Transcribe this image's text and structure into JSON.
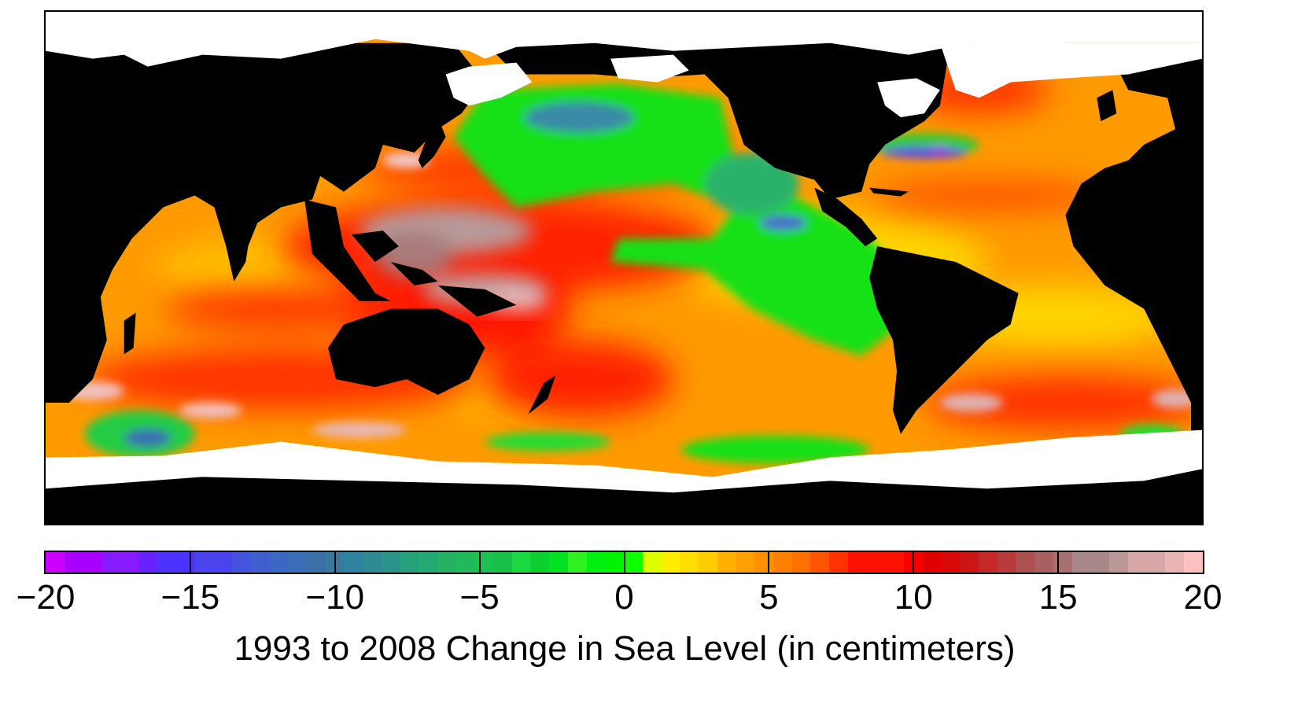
{
  "chart_data": {
    "type": "heatmap",
    "title": "",
    "colorbar_label": "1993 to 2008 Change in Sea Level (in centimeters)",
    "colorbar_range": [
      -20,
      20
    ],
    "colorbar_ticks": [
      -20,
      -15,
      -10,
      -5,
      0,
      5,
      10,
      15,
      20
    ],
    "colorbar_tick_labels": [
      "−20",
      "−15",
      "−10",
      "−5",
      "0",
      "5",
      "10",
      "15",
      "20"
    ],
    "colorbar_step_cm": 1,
    "colorbar_colors": [
      "#cc00ff",
      "#aa00ff",
      "#aa00ff",
      "#881aff",
      "#881aff",
      "#6622ff",
      "#4d33ff",
      "#4d33ff",
      "#4a44ee",
      "#4a44ee",
      "#4455dd",
      "#4060d0",
      "#3a68c4",
      "#3a6cb8",
      "#3e70a8",
      "#377a9e",
      "#2e84a0",
      "#2e8a94",
      "#2a9488",
      "#27a07c",
      "#24a874",
      "#26b064",
      "#22b85c",
      "#1ec050",
      "#18c046",
      "#1ad840",
      "#0cd030",
      "#04e024",
      "#30f020",
      "#00f010",
      "#00f400",
      "#10ff00",
      "#ddff00",
      "#ffee00",
      "#ffdd00",
      "#ffcc00",
      "#ffb000",
      "#ffa000",
      "#ff9000",
      "#ff8000",
      "#ff7000",
      "#ff5500",
      "#ff3300",
      "#ff1100",
      "#ff1100",
      "#ff1100",
      "#f80000",
      "#e00000",
      "#d80808",
      "#cc1515",
      "#c42828",
      "#b83a3a",
      "#ac5050",
      "#a86060",
      "#a87070",
      "#a88888",
      "#a88888",
      "#bb9898",
      "#d8a8a8",
      "#d8a8a8",
      "#e8b4b4",
      "#ffc0c0"
    ],
    "projection": "equirectangular, Pacific-centered (approx. 20°E to 20°E)",
    "legend": {
      "land": "black",
      "sea_ice_or_no_data": "white"
    },
    "regions_summary": [
      {
        "region": "Western tropical Pacific",
        "approx_change_cm": "15 to 20"
      },
      {
        "region": "Eastern North Pacific / off Americas",
        "approx_change_cm": "-5 to 0"
      },
      {
        "region": "North Atlantic Gulf Stream",
        "approx_change_cm": "-20 to -5 (mixed with +15)"
      },
      {
        "region": "Indian Ocean",
        "approx_change_cm": "5 to 10"
      },
      {
        "region": "South Atlantic",
        "approx_change_cm": "5 to 10"
      },
      {
        "region": "Southern Ocean",
        "approx_change_cm": "-10 to 20 (patchy)"
      },
      {
        "region": "Subpolar North Atlantic",
        "approx_change_cm": "10 to 15"
      }
    ]
  },
  "colorbar": {
    "ticks": [
      {
        "label": "−20",
        "pos": 0
      },
      {
        "label": "−15",
        "pos": 0.125
      },
      {
        "label": "−10",
        "pos": 0.25
      },
      {
        "label": "−5",
        "pos": 0.375
      },
      {
        "label": "0",
        "pos": 0.5
      },
      {
        "label": "5",
        "pos": 0.625
      },
      {
        "label": "10",
        "pos": 0.75
      },
      {
        "label": "15",
        "pos": 0.875
      },
      {
        "label": "20",
        "pos": 1.0
      }
    ]
  },
  "caption": "1993 to 2008 Change in Sea Level (in centimeters)",
  "colors": {
    "land": "#000000",
    "ice": "#ffffff",
    "frame": "#000000"
  }
}
